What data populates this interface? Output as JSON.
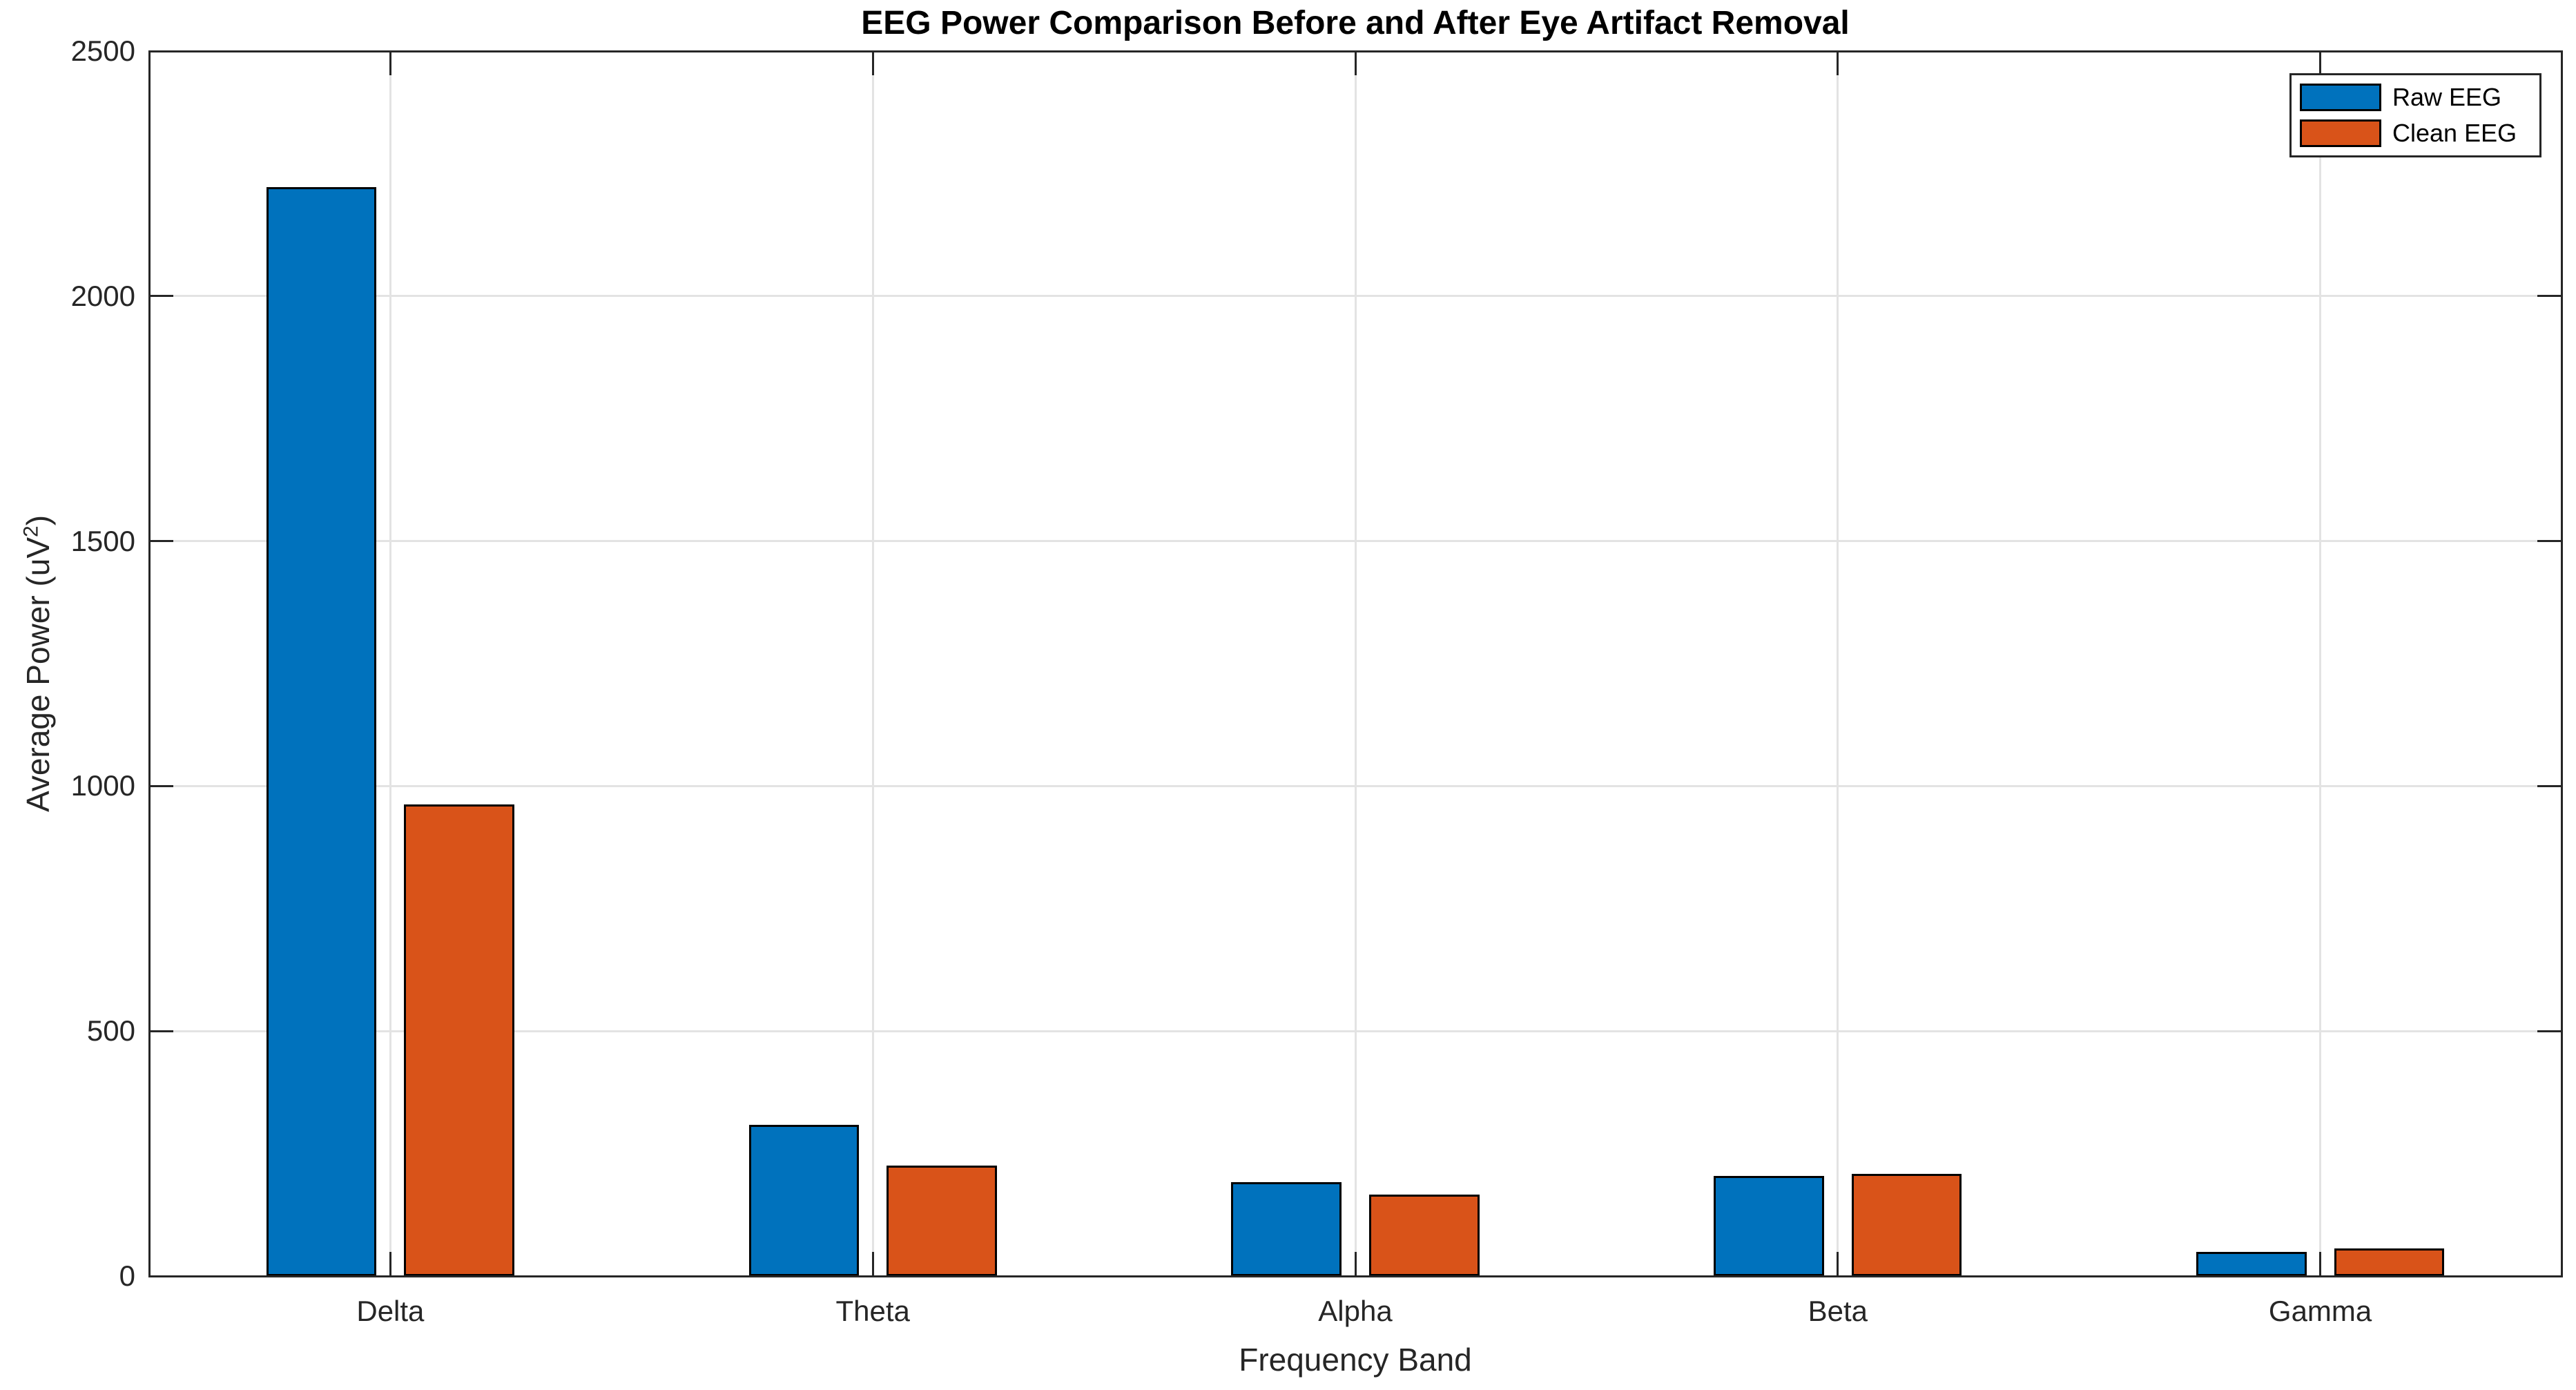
{
  "figure": {
    "title": "EEG Power Comparison Before and After Eye Artifact Removal",
    "xlabel": "Frequency Band",
    "ylabel_pre": "Average Power (uV",
    "ylabel_sup": "2",
    "ylabel_post": ")"
  },
  "colors": {
    "raw_series": "#0072BD",
    "clean_series": "#D95319",
    "axis": "#262626",
    "grid": "#e3e3e3",
    "bar_edge": "#000000",
    "background": "#ffffff"
  },
  "chart_data": {
    "type": "bar",
    "title": "EEG Power Comparison Before and After Eye Artifact Removal",
    "xlabel": "Frequency Band",
    "ylabel": "Average Power (uV^2)",
    "categories": [
      "Delta",
      "Theta",
      "Alpha",
      "Beta",
      "Gamma"
    ],
    "series": [
      {
        "name": "Raw EEG",
        "color": "#0072BD",
        "values": [
          2222,
          309,
          191,
          205,
          50
        ]
      },
      {
        "name": "Clean EEG",
        "color": "#D95319",
        "values": [
          962,
          225,
          166,
          208,
          57
        ]
      }
    ],
    "ylim": [
      0,
      2500
    ],
    "yticks": [
      0,
      500,
      1000,
      1500,
      2000,
      2500
    ],
    "grid": true,
    "legend_position": "top-right",
    "legend": [
      "Raw EEG",
      "Clean EEG"
    ],
    "bar_style": "grouped"
  }
}
